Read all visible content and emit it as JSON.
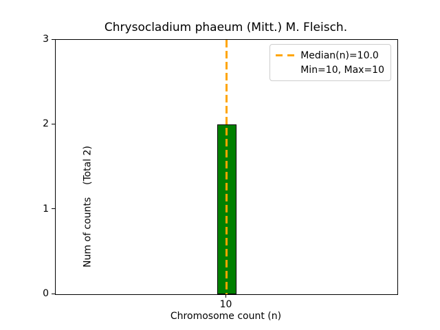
{
  "chart_data": {
    "type": "bar",
    "title": "Chrysocladium phaeum (Mitt.) M. Fleisch.",
    "xlabel": "Chromosome count (n)",
    "ylabel": "Num of counts    (Total 2)",
    "categories": [
      "10"
    ],
    "values": [
      2
    ],
    "ylim": [
      0,
      3
    ],
    "yticks": [
      0,
      1,
      2,
      3
    ],
    "xticks": [
      "10"
    ],
    "bar_color": "#008000",
    "bar_edge_color": "#000000",
    "background_color": "#ffffff",
    "grid": false,
    "median_line": {
      "value": 10.0,
      "color": "#FFA500",
      "style": "dashed"
    },
    "legend": {
      "position": "upper right",
      "entries": [
        {
          "label": "Median(n)=10.0",
          "handle": "orange-dashed-line"
        },
        {
          "label": "Min=10, Max=10",
          "handle": "none"
        }
      ]
    }
  }
}
